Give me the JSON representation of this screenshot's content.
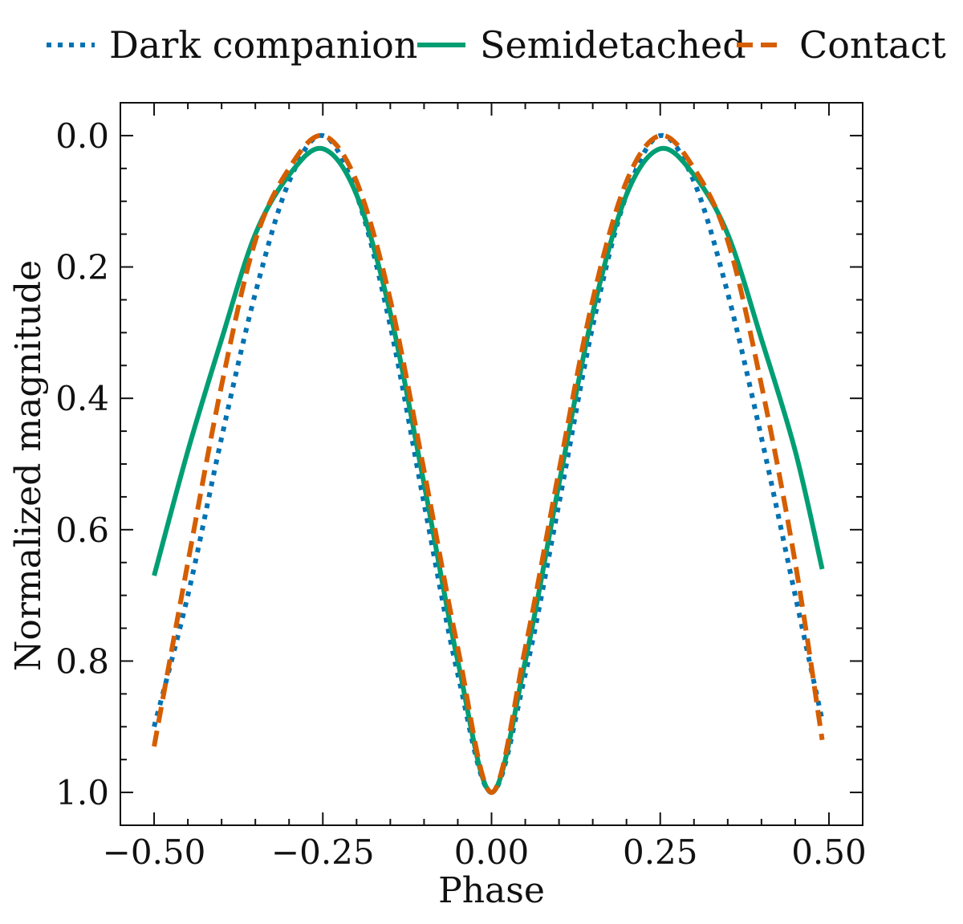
{
  "chart_data": {
    "type": "line",
    "title": "",
    "xlabel": "Phase",
    "ylabel": "Normalized magnitude",
    "xlim": [
      -0.55,
      0.55
    ],
    "ylim": [
      1.05,
      -0.05
    ],
    "y_inverted": true,
    "grid": false,
    "legend_position": "top (outside, above plot)",
    "xticks": [
      -0.5,
      -0.25,
      0.0,
      0.25,
      0.5
    ],
    "xtick_labels": [
      "−0.50",
      "−0.25",
      "0.00",
      "0.25",
      "0.50"
    ],
    "yticks": [
      0.0,
      0.2,
      0.4,
      0.6,
      0.8,
      1.0
    ],
    "ytick_labels": [
      "0.0",
      "0.2",
      "0.4",
      "0.6",
      "0.8",
      "1.0"
    ],
    "x": [
      -0.5,
      -0.45,
      -0.4,
      -0.35,
      -0.3,
      -0.25,
      -0.2,
      -0.15,
      -0.1,
      -0.05,
      0.0,
      0.05,
      0.1,
      0.15,
      0.2,
      0.25,
      0.3,
      0.35,
      0.4,
      0.45,
      0.49
    ],
    "series": [
      {
        "name": "Dark companion",
        "style": "dotted",
        "color": "#0072B2",
        "values": [
          0.9,
          0.7,
          0.46,
          0.24,
          0.07,
          0.0,
          0.09,
          0.29,
          0.56,
          0.82,
          1.0,
          0.82,
          0.56,
          0.29,
          0.09,
          0.0,
          0.07,
          0.24,
          0.46,
          0.7,
          0.89
        ]
      },
      {
        "name": "Semidetached",
        "style": "solid",
        "color": "#009E73",
        "values": [
          0.67,
          0.48,
          0.31,
          0.15,
          0.06,
          0.02,
          0.09,
          0.27,
          0.53,
          0.8,
          1.0,
          0.8,
          0.53,
          0.27,
          0.09,
          0.02,
          0.06,
          0.15,
          0.31,
          0.48,
          0.66
        ]
      },
      {
        "name": "Contact",
        "style": "dashed",
        "color": "#D55E00",
        "values": [
          0.93,
          0.65,
          0.38,
          0.16,
          0.05,
          0.0,
          0.07,
          0.25,
          0.51,
          0.78,
          1.0,
          0.78,
          0.51,
          0.25,
          0.07,
          0.0,
          0.05,
          0.16,
          0.38,
          0.65,
          0.92
        ]
      }
    ]
  }
}
